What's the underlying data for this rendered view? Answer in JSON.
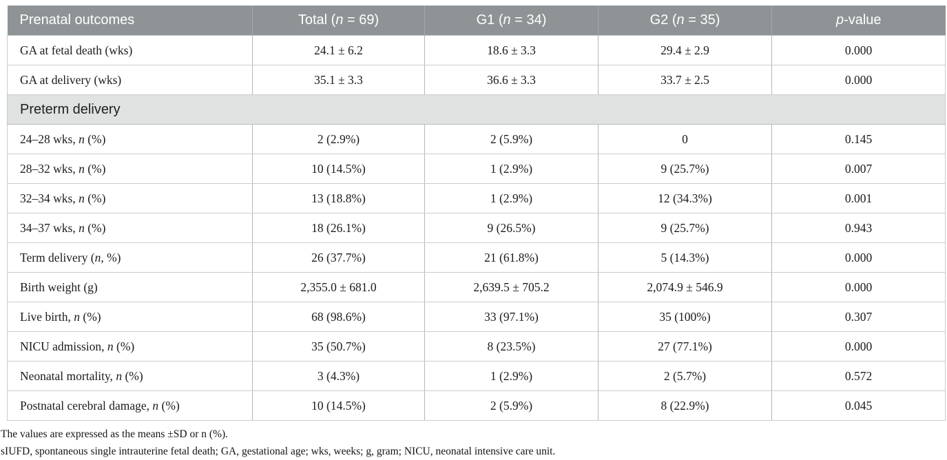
{
  "colors": {
    "header_bg": "#8e9496",
    "header_text": "#ffffff",
    "section_bg": "#e0e2e2"
  },
  "table": {
    "header": {
      "columns": [
        "Prenatal outcomes",
        "Total (*n* = 69)",
        "G1 (*n* = 34)",
        "G2 (*n* = 35)",
        "*p*-value"
      ]
    },
    "rows": [
      {
        "type": "data",
        "cells": [
          "GA at fetal death (wks)",
          "24.1 ± 6.2",
          "18.6 ± 3.3",
          "29.4 ± 2.9",
          "0.000"
        ]
      },
      {
        "type": "data",
        "cells": [
          "GA at delivery (wks)",
          "35.1 ± 3.3",
          "36.6 ± 3.3",
          "33.7 ± 2.5",
          "0.000"
        ]
      },
      {
        "type": "section",
        "label": "Preterm delivery"
      },
      {
        "type": "data",
        "cells": [
          "24–28 wks, *n* (%)",
          "2 (2.9%)",
          "2 (5.9%)",
          "0",
          "0.145"
        ]
      },
      {
        "type": "data",
        "cells": [
          "28–32 wks, *n* (%)",
          "10 (14.5%)",
          "1 (2.9%)",
          "9 (25.7%)",
          "0.007"
        ]
      },
      {
        "type": "data",
        "cells": [
          "32–34 wks, *n* (%)",
          "13 (18.8%)",
          "1 (2.9%)",
          "12 (34.3%)",
          "0.001"
        ]
      },
      {
        "type": "data",
        "cells": [
          "34–37 wks, *n* (%)",
          "18 (26.1%)",
          "9 (26.5%)",
          "9 (25.7%)",
          "0.943"
        ]
      },
      {
        "type": "data",
        "cells": [
          "Term delivery (*n*, %)",
          "26 (37.7%)",
          "21 (61.8%)",
          "5 (14.3%)",
          "0.000"
        ]
      },
      {
        "type": "data",
        "cells": [
          "Birth weight (g)",
          "2,355.0 ± 681.0",
          "2,639.5 ± 705.2",
          "2,074.9 ± 546.9",
          "0.000"
        ]
      },
      {
        "type": "data",
        "cells": [
          "Live birth, *n* (%)",
          "68 (98.6%)",
          "33 (97.1%)",
          "35 (100%)",
          "0.307"
        ]
      },
      {
        "type": "data",
        "cells": [
          "NICU admission, *n* (%)",
          "35 (50.7%)",
          "8 (23.5%)",
          "27 (77.1%)",
          "0.000"
        ]
      },
      {
        "type": "data",
        "cells": [
          "Neonatal mortality, *n* (%)",
          "3 (4.3%)",
          "1 (2.9%)",
          "2 (5.7%)",
          "0.572"
        ]
      },
      {
        "type": "data",
        "cells": [
          "Postnatal cerebral damage, *n* (%)",
          "10 (14.5%)",
          "2 (5.9%)",
          "8 (22.9%)",
          "0.045"
        ]
      }
    ],
    "footnotes": [
      "The values are expressed as the means ±SD or n (%).",
      "sIUFD, spontaneous single intrauterine fetal death; GA, gestational age; wks, weeks; g, gram; NICU, neonatal intensive care unit."
    ]
  }
}
